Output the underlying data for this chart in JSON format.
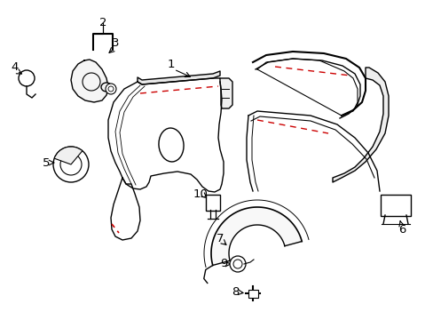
{
  "bg_color": "#ffffff",
  "line_color": "#000000",
  "red_color": "#cc0000",
  "figsize": [
    4.89,
    3.6
  ],
  "dpi": 100
}
